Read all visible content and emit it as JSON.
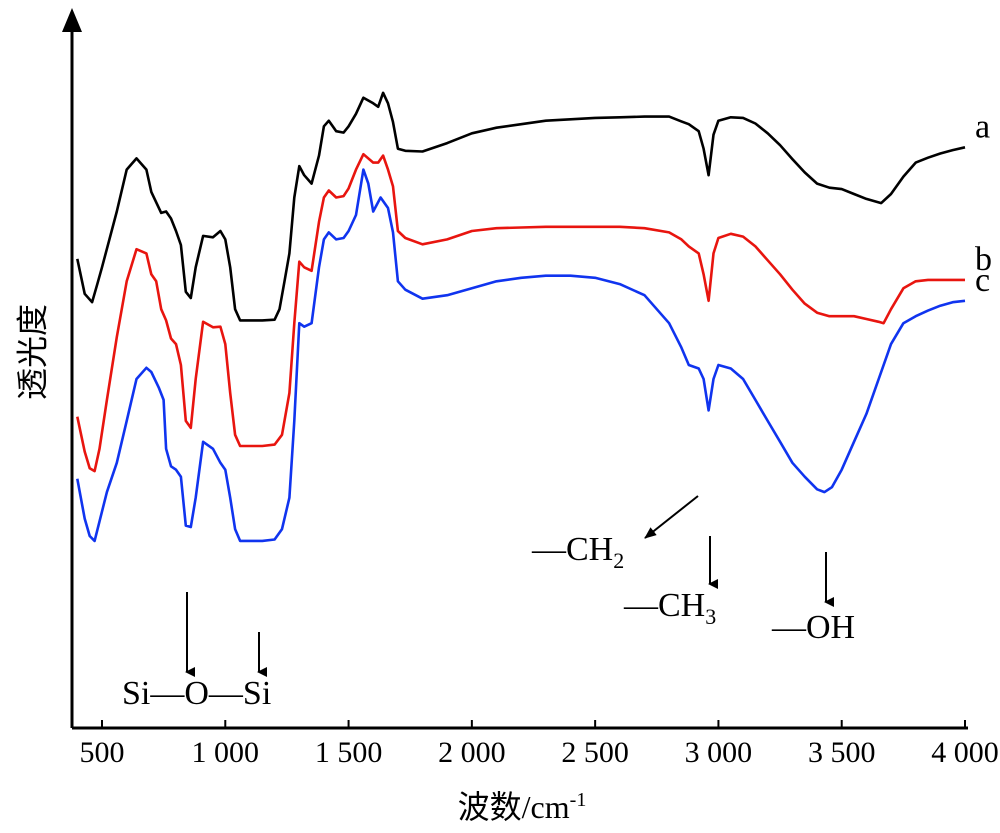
{
  "chart_data": {
    "type": "line",
    "xlabel": "波数/cm",
    "xlabel_sup": "-1",
    "ylabel": "透光度",
    "xlim": [
      400,
      4000
    ],
    "x_ticks": [
      500,
      1000,
      1500,
      2000,
      2500,
      3000,
      3500,
      4000
    ],
    "x_tick_labels": [
      "500",
      "1 000",
      "1 500",
      "2 000",
      "2 500",
      "3 000",
      "3 500",
      "4 000"
    ],
    "y_ticks_shown": false,
    "series": [
      {
        "name": "a",
        "color": "#000000",
        "points": [
          [
            400,
            0.672
          ],
          [
            430,
            0.622
          ],
          [
            460,
            0.61
          ],
          [
            480,
            0.635
          ],
          [
            500,
            0.66
          ],
          [
            530,
            0.7
          ],
          [
            560,
            0.74
          ],
          [
            600,
            0.8
          ],
          [
            640,
            0.816
          ],
          [
            680,
            0.8
          ],
          [
            700,
            0.768
          ],
          [
            740,
            0.738
          ],
          [
            760,
            0.74
          ],
          [
            780,
            0.73
          ],
          [
            800,
            0.712
          ],
          [
            820,
            0.692
          ],
          [
            840,
            0.625
          ],
          [
            860,
            0.616
          ],
          [
            880,
            0.66
          ],
          [
            910,
            0.705
          ],
          [
            950,
            0.703
          ],
          [
            980,
            0.712
          ],
          [
            1000,
            0.7
          ],
          [
            1020,
            0.66
          ],
          [
            1040,
            0.6
          ],
          [
            1060,
            0.584
          ],
          [
            1100,
            0.584
          ],
          [
            1150,
            0.584
          ],
          [
            1200,
            0.585
          ],
          [
            1220,
            0.6
          ],
          [
            1240,
            0.64
          ],
          [
            1260,
            0.68
          ],
          [
            1280,
            0.76
          ],
          [
            1300,
            0.805
          ],
          [
            1320,
            0.792
          ],
          [
            1350,
            0.78
          ],
          [
            1380,
            0.82
          ],
          [
            1400,
            0.862
          ],
          [
            1420,
            0.87
          ],
          [
            1450,
            0.855
          ],
          [
            1480,
            0.853
          ],
          [
            1500,
            0.862
          ],
          [
            1530,
            0.88
          ],
          [
            1560,
            0.903
          ],
          [
            1600,
            0.895
          ],
          [
            1620,
            0.89
          ],
          [
            1640,
            0.91
          ],
          [
            1660,
            0.895
          ],
          [
            1680,
            0.868
          ],
          [
            1700,
            0.83
          ],
          [
            1730,
            0.827
          ],
          [
            1800,
            0.826
          ],
          [
            1900,
            0.838
          ],
          [
            2000,
            0.852
          ],
          [
            2100,
            0.86
          ],
          [
            2200,
            0.865
          ],
          [
            2300,
            0.87
          ],
          [
            2400,
            0.872
          ],
          [
            2500,
            0.874
          ],
          [
            2600,
            0.875
          ],
          [
            2700,
            0.876
          ],
          [
            2800,
            0.876
          ],
          [
            2850,
            0.869
          ],
          [
            2880,
            0.865
          ],
          [
            2920,
            0.855
          ],
          [
            2940,
            0.83
          ],
          [
            2960,
            0.792
          ],
          [
            2980,
            0.85
          ],
          [
            3000,
            0.87
          ],
          [
            3050,
            0.875
          ],
          [
            3100,
            0.874
          ],
          [
            3150,
            0.866
          ],
          [
            3200,
            0.852
          ],
          [
            3250,
            0.835
          ],
          [
            3300,
            0.815
          ],
          [
            3350,
            0.796
          ],
          [
            3400,
            0.78
          ],
          [
            3450,
            0.774
          ],
          [
            3500,
            0.772
          ],
          [
            3550,
            0.765
          ],
          [
            3600,
            0.758
          ],
          [
            3660,
            0.752
          ],
          [
            3700,
            0.765
          ],
          [
            3750,
            0.79
          ],
          [
            3800,
            0.81
          ],
          [
            3850,
            0.817
          ],
          [
            3900,
            0.823
          ],
          [
            3950,
            0.828
          ],
          [
            4000,
            0.832
          ]
        ]
      },
      {
        "name": "b",
        "color": "#e8150f",
        "points": [
          [
            400,
            0.446
          ],
          [
            430,
            0.396
          ],
          [
            450,
            0.372
          ],
          [
            470,
            0.368
          ],
          [
            490,
            0.4
          ],
          [
            520,
            0.47
          ],
          [
            560,
            0.56
          ],
          [
            600,
            0.64
          ],
          [
            640,
            0.686
          ],
          [
            680,
            0.68
          ],
          [
            700,
            0.65
          ],
          [
            720,
            0.64
          ],
          [
            740,
            0.6
          ],
          [
            760,
            0.584
          ],
          [
            780,
            0.558
          ],
          [
            800,
            0.55
          ],
          [
            820,
            0.52
          ],
          [
            840,
            0.44
          ],
          [
            860,
            0.43
          ],
          [
            880,
            0.5
          ],
          [
            910,
            0.582
          ],
          [
            950,
            0.574
          ],
          [
            980,
            0.575
          ],
          [
            1000,
            0.55
          ],
          [
            1020,
            0.48
          ],
          [
            1040,
            0.42
          ],
          [
            1060,
            0.404
          ],
          [
            1100,
            0.404
          ],
          [
            1150,
            0.404
          ],
          [
            1200,
            0.406
          ],
          [
            1230,
            0.42
          ],
          [
            1260,
            0.48
          ],
          [
            1280,
            0.58
          ],
          [
            1300,
            0.668
          ],
          [
            1320,
            0.66
          ],
          [
            1350,
            0.655
          ],
          [
            1380,
            0.725
          ],
          [
            1400,
            0.76
          ],
          [
            1420,
            0.77
          ],
          [
            1450,
            0.76
          ],
          [
            1480,
            0.762
          ],
          [
            1500,
            0.773
          ],
          [
            1530,
            0.8
          ],
          [
            1560,
            0.822
          ],
          [
            1600,
            0.81
          ],
          [
            1620,
            0.81
          ],
          [
            1640,
            0.82
          ],
          [
            1660,
            0.8
          ],
          [
            1680,
            0.776
          ],
          [
            1700,
            0.712
          ],
          [
            1730,
            0.702
          ],
          [
            1800,
            0.693
          ],
          [
            1900,
            0.7
          ],
          [
            2000,
            0.712
          ],
          [
            2100,
            0.716
          ],
          [
            2200,
            0.717
          ],
          [
            2300,
            0.718
          ],
          [
            2400,
            0.718
          ],
          [
            2500,
            0.718
          ],
          [
            2600,
            0.718
          ],
          [
            2700,
            0.716
          ],
          [
            2800,
            0.71
          ],
          [
            2850,
            0.7
          ],
          [
            2880,
            0.69
          ],
          [
            2920,
            0.68
          ],
          [
            2940,
            0.65
          ],
          [
            2960,
            0.612
          ],
          [
            2980,
            0.68
          ],
          [
            3000,
            0.702
          ],
          [
            3050,
            0.708
          ],
          [
            3100,
            0.704
          ],
          [
            3150,
            0.69
          ],
          [
            3200,
            0.67
          ],
          [
            3250,
            0.65
          ],
          [
            3300,
            0.628
          ],
          [
            3350,
            0.608
          ],
          [
            3400,
            0.595
          ],
          [
            3450,
            0.59
          ],
          [
            3500,
            0.59
          ],
          [
            3550,
            0.59
          ],
          [
            3600,
            0.586
          ],
          [
            3650,
            0.582
          ],
          [
            3670,
            0.58
          ],
          [
            3700,
            0.6
          ],
          [
            3750,
            0.63
          ],
          [
            3800,
            0.64
          ],
          [
            3850,
            0.642
          ],
          [
            3900,
            0.642
          ],
          [
            3950,
            0.642
          ],
          [
            4000,
            0.642
          ]
        ]
      },
      {
        "name": "c",
        "color": "#1034ef",
        "points": [
          [
            400,
            0.357
          ],
          [
            430,
            0.3
          ],
          [
            450,
            0.275
          ],
          [
            470,
            0.268
          ],
          [
            490,
            0.296
          ],
          [
            520,
            0.338
          ],
          [
            560,
            0.38
          ],
          [
            600,
            0.44
          ],
          [
            640,
            0.5
          ],
          [
            680,
            0.516
          ],
          [
            700,
            0.51
          ],
          [
            730,
            0.488
          ],
          [
            750,
            0.47
          ],
          [
            760,
            0.4
          ],
          [
            780,
            0.375
          ],
          [
            800,
            0.37
          ],
          [
            820,
            0.36
          ],
          [
            840,
            0.29
          ],
          [
            860,
            0.288
          ],
          [
            880,
            0.33
          ],
          [
            910,
            0.41
          ],
          [
            950,
            0.4
          ],
          [
            980,
            0.38
          ],
          [
            1000,
            0.37
          ],
          [
            1020,
            0.33
          ],
          [
            1040,
            0.285
          ],
          [
            1060,
            0.268
          ],
          [
            1100,
            0.268
          ],
          [
            1150,
            0.268
          ],
          [
            1200,
            0.27
          ],
          [
            1230,
            0.285
          ],
          [
            1260,
            0.33
          ],
          [
            1280,
            0.44
          ],
          [
            1300,
            0.58
          ],
          [
            1320,
            0.575
          ],
          [
            1350,
            0.58
          ],
          [
            1380,
            0.66
          ],
          [
            1400,
            0.7
          ],
          [
            1420,
            0.71
          ],
          [
            1450,
            0.7
          ],
          [
            1480,
            0.702
          ],
          [
            1500,
            0.712
          ],
          [
            1530,
            0.735
          ],
          [
            1560,
            0.8
          ],
          [
            1580,
            0.78
          ],
          [
            1600,
            0.74
          ],
          [
            1630,
            0.76
          ],
          [
            1660,
            0.745
          ],
          [
            1680,
            0.71
          ],
          [
            1700,
            0.64
          ],
          [
            1730,
            0.628
          ],
          [
            1800,
            0.615
          ],
          [
            1900,
            0.62
          ],
          [
            2000,
            0.63
          ],
          [
            2100,
            0.64
          ],
          [
            2200,
            0.645
          ],
          [
            2300,
            0.648
          ],
          [
            2400,
            0.648
          ],
          [
            2500,
            0.645
          ],
          [
            2600,
            0.636
          ],
          [
            2700,
            0.62
          ],
          [
            2800,
            0.58
          ],
          [
            2850,
            0.545
          ],
          [
            2880,
            0.52
          ],
          [
            2920,
            0.515
          ],
          [
            2940,
            0.5
          ],
          [
            2960,
            0.455
          ],
          [
            2980,
            0.5
          ],
          [
            3000,
            0.52
          ],
          [
            3050,
            0.515
          ],
          [
            3100,
            0.5
          ],
          [
            3150,
            0.47
          ],
          [
            3200,
            0.44
          ],
          [
            3250,
            0.41
          ],
          [
            3300,
            0.38
          ],
          [
            3350,
            0.36
          ],
          [
            3400,
            0.342
          ],
          [
            3430,
            0.338
          ],
          [
            3460,
            0.345
          ],
          [
            3500,
            0.37
          ],
          [
            3550,
            0.41
          ],
          [
            3600,
            0.45
          ],
          [
            3650,
            0.5
          ],
          [
            3700,
            0.55
          ],
          [
            3750,
            0.58
          ],
          [
            3800,
            0.59
          ],
          [
            3850,
            0.598
          ],
          [
            3900,
            0.605
          ],
          [
            3950,
            0.61
          ],
          [
            4000,
            0.612
          ]
        ]
      }
    ],
    "annotations": [
      {
        "id": "ch2",
        "text": "—CH",
        "sub": "2",
        "target_x": 2880,
        "target_series": "c"
      },
      {
        "id": "ch3",
        "text": "—CH",
        "sub": "3",
        "target_x": 2960,
        "target_series": "c"
      },
      {
        "id": "oh",
        "text": "—OH",
        "sub": "",
        "target_x": 3450,
        "target_series": "c"
      },
      {
        "id": "sio",
        "text": "Si—O—Si",
        "sub": "",
        "target_x": [
          860,
          1130
        ],
        "target_series": "c"
      }
    ]
  }
}
